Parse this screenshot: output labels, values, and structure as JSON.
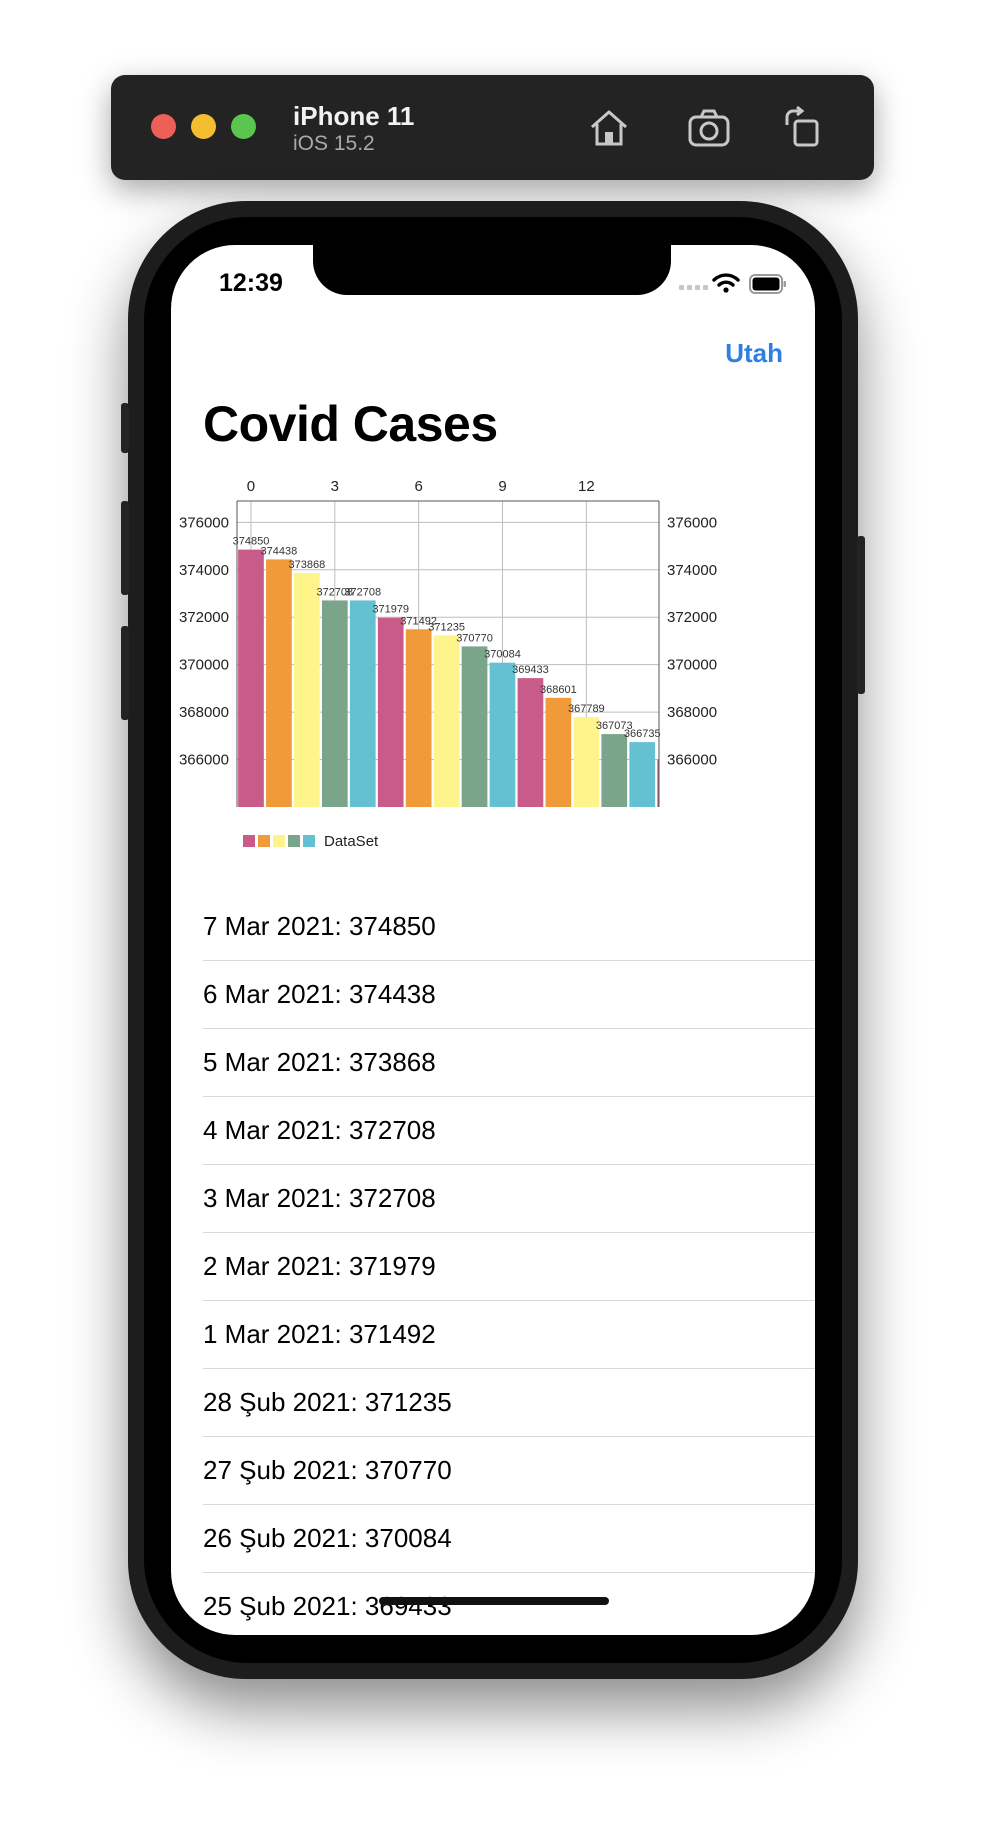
{
  "simulator": {
    "device_name": "iPhone 11",
    "os_version": "iOS 15.2",
    "icons": [
      "home-icon",
      "screenshot-icon",
      "rotate-icon"
    ]
  },
  "status_bar": {
    "time": "12:39"
  },
  "nav": {
    "right_button": "Utah"
  },
  "page": {
    "title": "Covid Cases"
  },
  "chart_data": {
    "type": "bar",
    "x": [
      0,
      1,
      2,
      3,
      4,
      5,
      6,
      7,
      8,
      9,
      10,
      11,
      12,
      13,
      14,
      15
    ],
    "values": [
      374850,
      374438,
      373868,
      372708,
      372708,
      371979,
      371492,
      371235,
      370770,
      370084,
      369433,
      368601,
      367789,
      367073,
      366735,
      366000
    ],
    "value_labels": [
      "374850",
      "374438",
      "373868",
      "372708",
      "372708",
      "371979",
      "371492",
      "371235",
      "370770",
      "370084",
      "369433",
      "368601",
      "367789",
      "367073",
      "366735",
      ""
    ],
    "x_ticks": [
      "0",
      "3",
      "6",
      "9",
      "12"
    ],
    "x_tick_values": [
      0,
      3,
      6,
      9,
      12
    ],
    "y_ticks": [
      "376000",
      "374000",
      "372000",
      "370000",
      "368000",
      "366000"
    ],
    "y_tick_values": [
      376000,
      374000,
      372000,
      370000,
      368000,
      366000
    ],
    "ylim": [
      364000,
      376900
    ],
    "xlim": [
      -0.5,
      14.6
    ],
    "colors": [
      "#c95b8a",
      "#f09a3a",
      "#fdf48c",
      "#7aa58a",
      "#63c1d1"
    ],
    "legend": {
      "label": "DataSet",
      "position": "bottom-left"
    },
    "grid": true
  },
  "list": [
    "7 Mar 2021: 374850",
    "6 Mar 2021: 374438",
    "5 Mar 2021: 373868",
    "4 Mar 2021: 372708",
    "3 Mar 2021: 372708",
    "2 Mar 2021: 371979",
    "1 Mar 2021: 371492",
    "28 Şub 2021: 371235",
    "27 Şub 2021: 370770",
    "26 Şub 2021: 370084",
    "25 Şub 2021: 369433"
  ]
}
